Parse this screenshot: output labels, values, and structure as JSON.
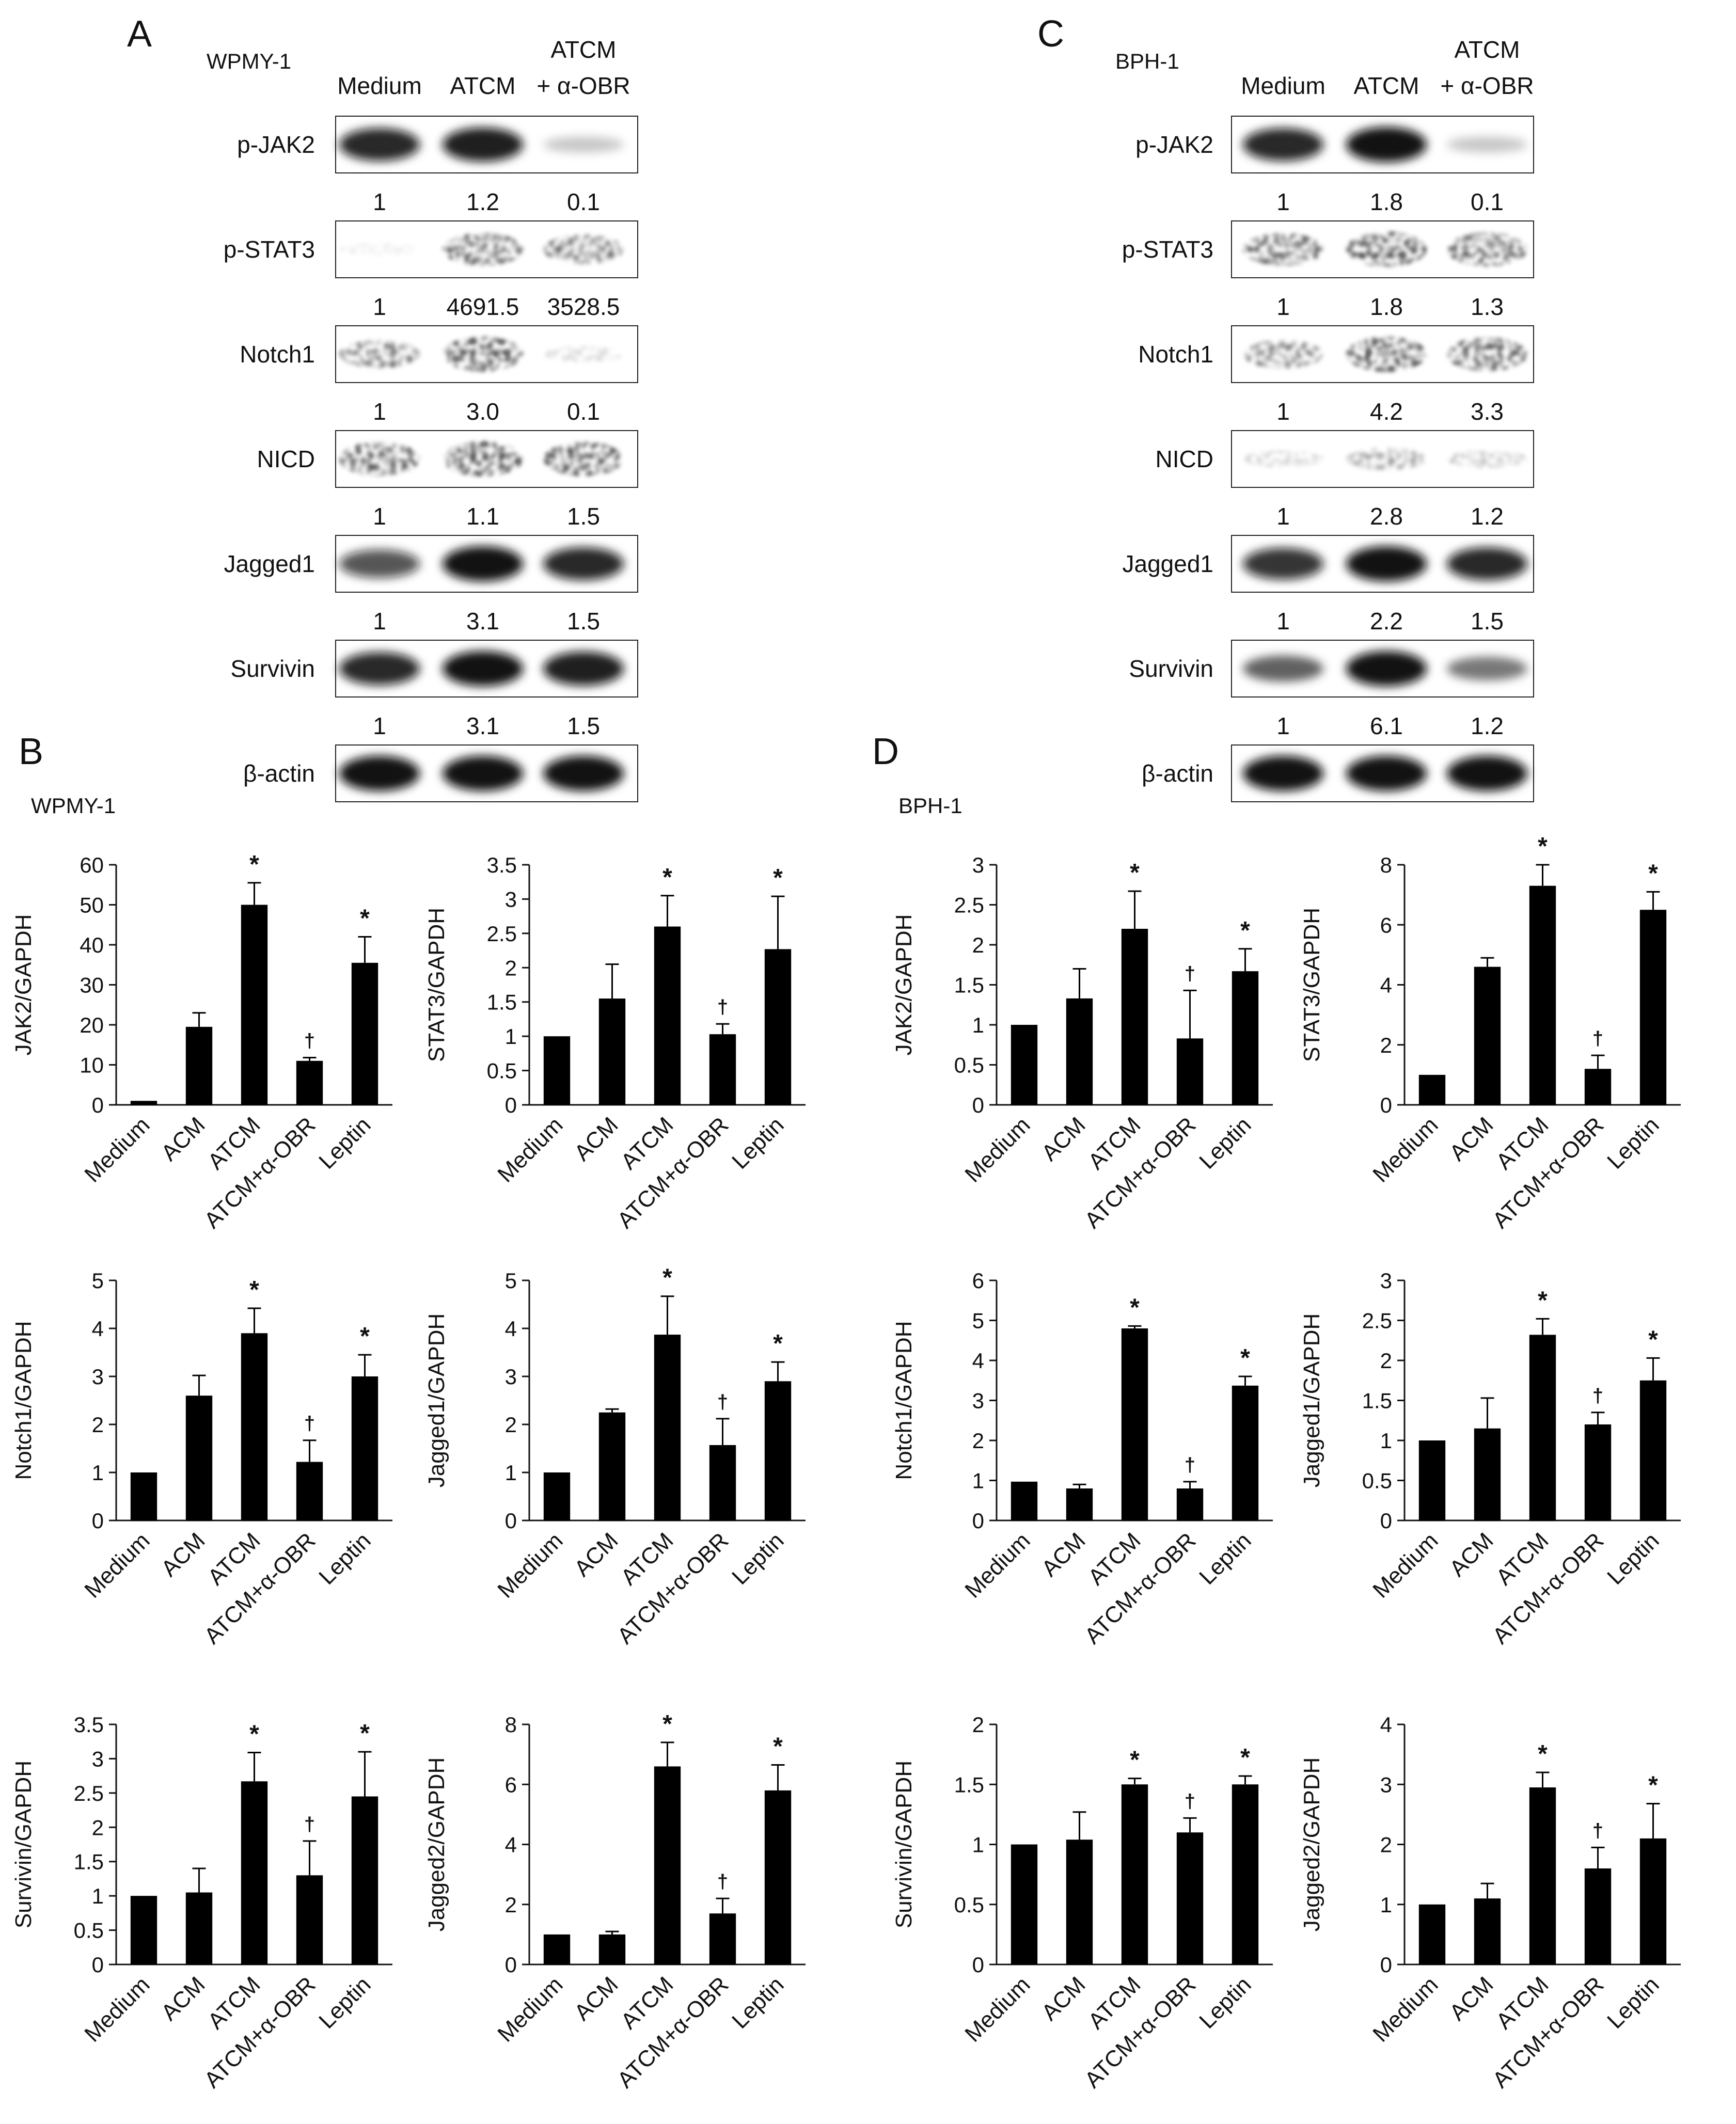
{
  "panel_letters": {
    "a": "A",
    "b": "B",
    "c": "C",
    "d": "D"
  },
  "blot_lane_labels": [
    "Medium",
    "ATCM",
    "ATCM",
    "+ α-OBR"
  ],
  "blots": [
    {
      "cell_line": "WPMY-1",
      "rows": [
        {
          "name": "p-JAK2",
          "quant": [
            "1",
            "1.2",
            "0.1"
          ],
          "intensity": [
            0.9,
            0.95,
            0.15
          ]
        },
        {
          "name": "p-STAT3",
          "quant": [
            "1",
            "4691.5",
            "3528.5"
          ],
          "intensity": [
            0.02,
            0.9,
            0.75
          ]
        },
        {
          "name": "Notch1",
          "quant": [
            "1",
            "3.0",
            "0.1"
          ],
          "intensity": [
            0.7,
            1.0,
            0.15
          ]
        },
        {
          "name": "NICD",
          "quant": [
            "1",
            "1.1",
            "1.5"
          ],
          "intensity": [
            0.95,
            1.0,
            0.95
          ]
        },
        {
          "name": "Jagged1",
          "quant": [
            "1",
            "3.1",
            "1.5"
          ],
          "intensity": [
            0.7,
            1.0,
            0.9
          ]
        },
        {
          "name": "Survivin",
          "quant": [
            "1",
            "3.1",
            "1.5"
          ],
          "intensity": [
            0.9,
            1.0,
            0.95
          ]
        },
        {
          "name": "β-actin",
          "quant": [],
          "intensity": [
            1.0,
            1.0,
            1.0
          ]
        }
      ]
    },
    {
      "cell_line": "BPH-1",
      "rows": [
        {
          "name": "p-JAK2",
          "quant": [
            "1",
            "1.8",
            "0.1"
          ],
          "intensity": [
            0.9,
            1.0,
            0.15
          ]
        },
        {
          "name": "p-STAT3",
          "quant": [
            "1",
            "1.8",
            "1.3"
          ],
          "intensity": [
            0.9,
            1.0,
            0.95
          ]
        },
        {
          "name": "Notch1",
          "quant": [
            "1",
            "4.2",
            "3.3"
          ],
          "intensity": [
            0.7,
            1.0,
            0.95
          ]
        },
        {
          "name": "NICD",
          "quant": [
            "1",
            "2.8",
            "1.2"
          ],
          "intensity": [
            0.2,
            0.45,
            0.25
          ]
        },
        {
          "name": "Jagged1",
          "quant": [
            "1",
            "2.2",
            "1.5"
          ],
          "intensity": [
            0.85,
            1.0,
            0.9
          ]
        },
        {
          "name": "Survivin",
          "quant": [
            "1",
            "6.1",
            "1.2"
          ],
          "intensity": [
            0.6,
            1.0,
            0.5
          ]
        },
        {
          "name": "β-actin",
          "quant": [],
          "intensity": [
            1.0,
            1.0,
            1.0
          ]
        }
      ]
    }
  ],
  "chart_data": [
    {
      "type": "bar",
      "panel": "B",
      "cell_line": "WPMY-1",
      "title": "",
      "xlabel": "",
      "ylabel": "JAK2/GAPDH",
      "categories": [
        "Medium",
        "ACM",
        "ATCM",
        "ATCM+α-OBR",
        "Leptin"
      ],
      "values": [
        1,
        19.5,
        50,
        11,
        35.5
      ],
      "errors": [
        0,
        3.5,
        5.5,
        0.8,
        6.5
      ],
      "marks": [
        "",
        "",
        "*",
        "†",
        "*"
      ],
      "ylim": [
        0,
        60
      ],
      "yticks": [
        0,
        10,
        20,
        30,
        40,
        50,
        60
      ],
      "grid": false
    },
    {
      "type": "bar",
      "panel": "B",
      "cell_line": "WPMY-1",
      "title": "",
      "xlabel": "",
      "ylabel": "STAT3/GAPDH",
      "categories": [
        "Medium",
        "ACM",
        "ATCM",
        "ATCM+α-OBR",
        "Leptin"
      ],
      "values": [
        1,
        1.55,
        2.6,
        1.03,
        2.27
      ],
      "errors": [
        0,
        0.5,
        0.45,
        0.15,
        0.77
      ],
      "marks": [
        "",
        "",
        "*",
        "†",
        "*"
      ],
      "ylim": [
        0,
        3.5
      ],
      "yticks": [
        0,
        0.5,
        1,
        1.5,
        2,
        2.5,
        3,
        3.5
      ],
      "grid": false
    },
    {
      "type": "bar",
      "panel": "D",
      "cell_line": "BPH-1",
      "title": "",
      "xlabel": "",
      "ylabel": "JAK2/GAPDH",
      "categories": [
        "Medium",
        "ACM",
        "ATCM",
        "ATCM+α-OBR",
        "Leptin"
      ],
      "values": [
        1,
        1.33,
        2.2,
        0.83,
        1.67
      ],
      "errors": [
        0,
        0.37,
        0.47,
        0.6,
        0.28
      ],
      "marks": [
        "",
        "",
        "*",
        "†",
        "*"
      ],
      "ylim": [
        0,
        3
      ],
      "yticks": [
        0,
        0.5,
        1,
        1.5,
        2,
        2.5,
        3
      ],
      "grid": false
    },
    {
      "type": "bar",
      "panel": "D",
      "cell_line": "BPH-1",
      "title": "",
      "xlabel": "",
      "ylabel": "STAT3/GAPDH",
      "categories": [
        "Medium",
        "ACM",
        "ATCM",
        "ATCM+α-OBR",
        "Leptin"
      ],
      "values": [
        1,
        4.6,
        7.3,
        1.2,
        6.5
      ],
      "errors": [
        0,
        0.3,
        0.7,
        0.45,
        0.6
      ],
      "marks": [
        "",
        "",
        "*",
        "†",
        "*"
      ],
      "ylim": [
        0,
        8
      ],
      "yticks": [
        0,
        2,
        4,
        6,
        8
      ],
      "grid": false
    },
    {
      "type": "bar",
      "panel": "B",
      "cell_line": "WPMY-1",
      "title": "",
      "xlabel": "",
      "ylabel": "Notch1/GAPDH",
      "categories": [
        "Medium",
        "ACM",
        "ATCM",
        "ATCM+α-OBR",
        "Leptin"
      ],
      "values": [
        1,
        2.6,
        3.9,
        1.22,
        3.0
      ],
      "errors": [
        0,
        0.42,
        0.52,
        0.45,
        0.45
      ],
      "marks": [
        "",
        "",
        "*",
        "†",
        "*"
      ],
      "ylim": [
        0,
        5
      ],
      "yticks": [
        0,
        1,
        2,
        3,
        4,
        5
      ],
      "grid": false
    },
    {
      "type": "bar",
      "panel": "B",
      "cell_line": "WPMY-1",
      "title": "",
      "xlabel": "",
      "ylabel": "Jagged1/GAPDH",
      "categories": [
        "Medium",
        "ACM",
        "ATCM",
        "ATCM+α-OBR",
        "Leptin"
      ],
      "values": [
        1,
        2.25,
        3.87,
        1.57,
        2.9
      ],
      "errors": [
        0,
        0.07,
        0.8,
        0.55,
        0.4
      ],
      "marks": [
        "",
        "",
        "*",
        "†",
        "*"
      ],
      "ylim": [
        0,
        5
      ],
      "yticks": [
        0,
        1,
        2,
        3,
        4,
        5
      ],
      "grid": false
    },
    {
      "type": "bar",
      "panel": "D",
      "cell_line": "BPH-1",
      "title": "",
      "xlabel": "",
      "ylabel": "Notch1/GAPDH",
      "categories": [
        "Medium",
        "ACM",
        "ATCM",
        "ATCM+α-OBR",
        "Leptin"
      ],
      "values": [
        0.97,
        0.8,
        4.8,
        0.8,
        3.37
      ],
      "errors": [
        0,
        0.1,
        0.06,
        0.17,
        0.23
      ],
      "marks": [
        "",
        "",
        "*",
        "†",
        "*"
      ],
      "ylim": [
        0,
        6
      ],
      "yticks": [
        0,
        1,
        2,
        3,
        4,
        5,
        6
      ],
      "grid": false
    },
    {
      "type": "bar",
      "panel": "D",
      "cell_line": "BPH-1",
      "title": "",
      "xlabel": "",
      "ylabel": "Jagged1/GAPDH",
      "categories": [
        "Medium",
        "ACM",
        "ATCM",
        "ATCM+α-OBR",
        "Leptin"
      ],
      "values": [
        1,
        1.15,
        2.32,
        1.2,
        1.75
      ],
      "errors": [
        0,
        0.38,
        0.2,
        0.15,
        0.28
      ],
      "marks": [
        "",
        "",
        "*",
        "†",
        "*"
      ],
      "ylim": [
        0,
        3
      ],
      "yticks": [
        0,
        0.5,
        1,
        1.5,
        2,
        2.5,
        3
      ],
      "grid": false
    },
    {
      "type": "bar",
      "panel": "B",
      "cell_line": "WPMY-1",
      "title": "",
      "xlabel": "",
      "ylabel": "Survivin/GAPDH",
      "categories": [
        "Medium",
        "ACM",
        "ATCM",
        "ATCM+α-OBR",
        "Leptin"
      ],
      "values": [
        1,
        1.05,
        2.67,
        1.3,
        2.45
      ],
      "errors": [
        0,
        0.35,
        0.42,
        0.5,
        0.65
      ],
      "marks": [
        "",
        "",
        "*",
        "†",
        "*"
      ],
      "ylim": [
        0,
        3.5
      ],
      "yticks": [
        0,
        0.5,
        1,
        1.5,
        2,
        2.5,
        3,
        3.5
      ],
      "grid": false
    },
    {
      "type": "bar",
      "panel": "B",
      "cell_line": "WPMY-1",
      "title": "",
      "xlabel": "",
      "ylabel": "Jagged2/GAPDH",
      "categories": [
        "Medium",
        "ACM",
        "ATCM",
        "ATCM+α-OBR",
        "Leptin"
      ],
      "values": [
        1,
        1,
        6.6,
        1.7,
        5.8
      ],
      "errors": [
        0,
        0.1,
        0.8,
        0.5,
        0.85
      ],
      "marks": [
        "",
        "",
        "*",
        "†",
        "*"
      ],
      "ylim": [
        0,
        8
      ],
      "yticks": [
        0,
        2,
        4,
        6,
        8
      ],
      "grid": false
    },
    {
      "type": "bar",
      "panel": "D",
      "cell_line": "BPH-1",
      "title": "",
      "xlabel": "",
      "ylabel": "Survivin/GAPDH",
      "categories": [
        "Medium",
        "ACM",
        "ATCM",
        "ATCM+α-OBR",
        "Leptin"
      ],
      "values": [
        1,
        1.04,
        1.5,
        1.1,
        1.5
      ],
      "errors": [
        0,
        0.23,
        0.05,
        0.12,
        0.07
      ],
      "marks": [
        "",
        "",
        "*",
        "†",
        "*"
      ],
      "ylim": [
        0,
        2
      ],
      "yticks": [
        0,
        0.5,
        1,
        1.5,
        2
      ],
      "grid": false
    },
    {
      "type": "bar",
      "panel": "D",
      "cell_line": "BPH-1",
      "title": "",
      "xlabel": "",
      "ylabel": "Jagged2/GAPDH",
      "categories": [
        "Medium",
        "ACM",
        "ATCM",
        "ATCM+α-OBR",
        "Leptin"
      ],
      "values": [
        1,
        1.1,
        2.95,
        1.6,
        2.1
      ],
      "errors": [
        0,
        0.25,
        0.25,
        0.35,
        0.58
      ],
      "marks": [
        "",
        "",
        "*",
        "†",
        "*"
      ],
      "ylim": [
        0,
        4
      ],
      "yticks": [
        0,
        1,
        2,
        3,
        4
      ],
      "grid": false
    }
  ],
  "colors": {
    "bar": "#000000",
    "axis": "#111111",
    "text": "#111111",
    "blot_bg": "#ffffff",
    "blot_band": "#0a0a0a"
  }
}
